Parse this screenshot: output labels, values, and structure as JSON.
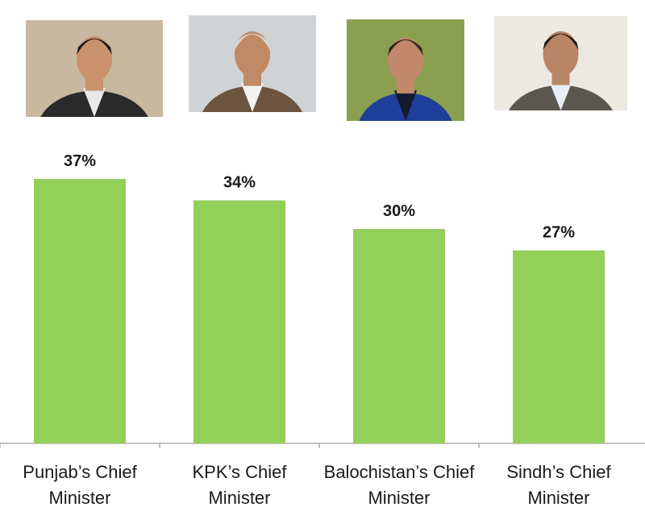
{
  "chart_data": {
    "type": "bar",
    "categories": [
      [
        "Punjab’s Chief",
        "Minister"
      ],
      [
        "KPK’s Chief",
        "Minister"
      ],
      [
        "Balochistan’s Chief",
        "Minister"
      ],
      [
        "Sindh’s Chief",
        "Minister"
      ]
    ],
    "values": [
      37,
      34,
      30,
      27
    ],
    "value_labels": [
      "37%",
      "34%",
      "30%",
      "27%"
    ],
    "bar_color": "#92d05a",
    "axis_color": "#888888",
    "ylim": [
      0,
      37
    ],
    "grid": false,
    "legend": "none"
  },
  "portraits": [
    {
      "name": "punjab-chief-minister-photo",
      "bg": "#c8b8a0",
      "skin": "#c9926c",
      "hair": "#1a1410",
      "coat": "#2a2a2a",
      "shirt": "#e8e8e8"
    },
    {
      "name": "kpk-chief-minister-photo",
      "bg": "#cfd3d6",
      "skin": "#c08a66",
      "hair": "#d8d8d8",
      "coat": "#6b5540",
      "shirt": "#f2f2f2"
    },
    {
      "name": "balochistan-chief-minister-photo",
      "bg": "#8aa050",
      "skin": "#c08868",
      "hair": "#302820",
      "coat": "#1f3f9a",
      "shirt": "#141a30"
    },
    {
      "name": "sindh-chief-minister-photo",
      "bg": "#ece8e2",
      "skin": "#b88666",
      "hair": "#181410",
      "coat": "#5a5650",
      "shirt": "#e8eef4"
    }
  ]
}
